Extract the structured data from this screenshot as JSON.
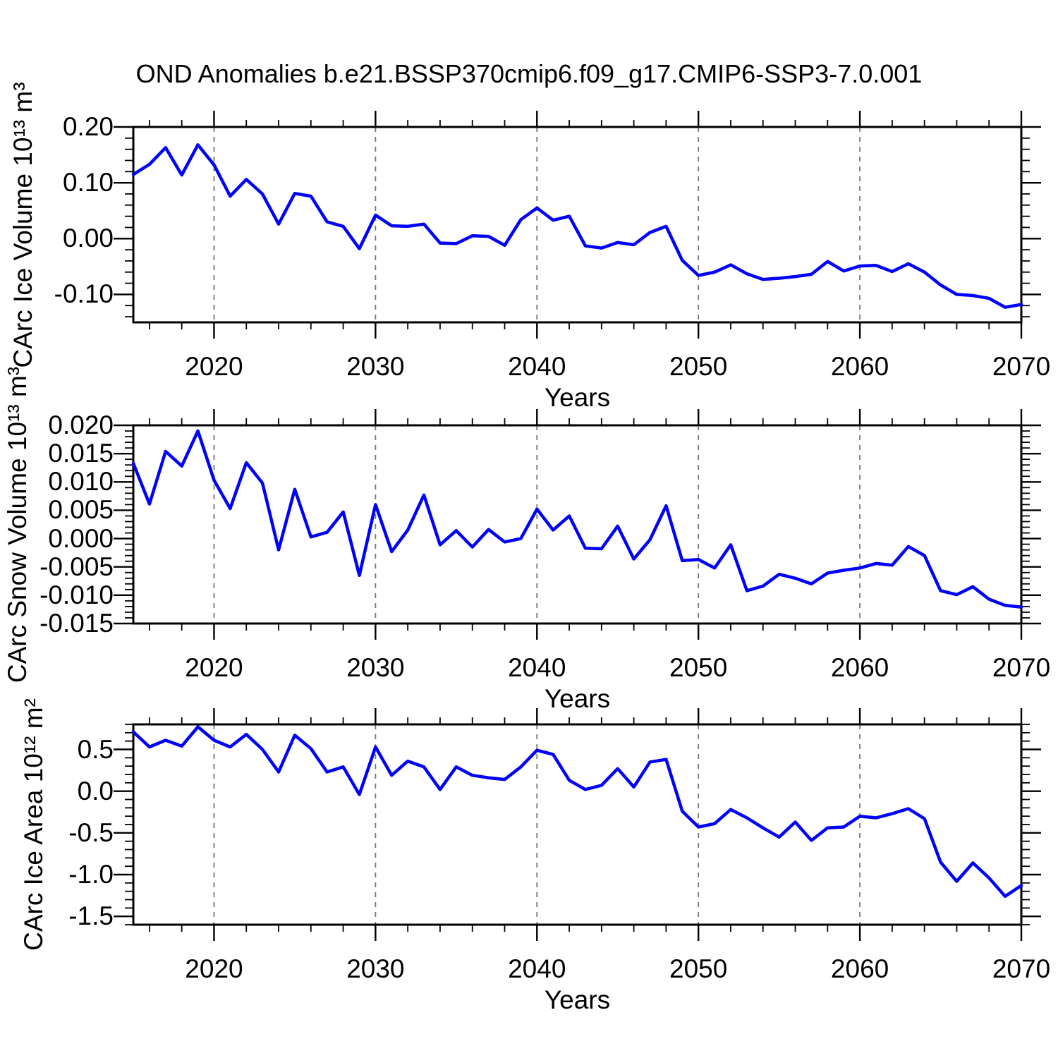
{
  "title": "OND Anomalies b.e21.BSSP370cmip6.f09_g17.CMIP6-SSP3-7.0.001",
  "line_color": "#0000ff",
  "grid_color": "#777777",
  "chart_data": {
    "type": "line",
    "x_label": "Years",
    "xlim": [
      2015,
      2070
    ],
    "x_major_ticks": [
      2020,
      2030,
      2040,
      2050,
      2060,
      2070
    ],
    "x_tick_labels": [
      "2020",
      "2030",
      "2040",
      "2050",
      "2060",
      "2070"
    ],
    "x_minor_step": 2,
    "grid_x": [
      2020,
      2030,
      2040,
      2050,
      2060
    ],
    "grid_style": "dashed",
    "line_color": "#0000ff",
    "x": [
      2015,
      2016,
      2017,
      2018,
      2019,
      2020,
      2021,
      2022,
      2023,
      2024,
      2025,
      2026,
      2027,
      2028,
      2029,
      2030,
      2031,
      2032,
      2033,
      2034,
      2035,
      2036,
      2037,
      2038,
      2039,
      2040,
      2041,
      2042,
      2043,
      2044,
      2045,
      2046,
      2047,
      2048,
      2049,
      2050,
      2051,
      2052,
      2053,
      2054,
      2055,
      2056,
      2057,
      2058,
      2059,
      2060,
      2061,
      2062,
      2063,
      2064,
      2065,
      2066,
      2067,
      2068,
      2069,
      2070
    ],
    "panels": [
      {
        "name": "carc-ice-volume",
        "ylabel": "CArc Ice Volume 10¹³ m³",
        "ylim": [
          -0.15,
          0.2
        ],
        "y_major_ticks": [
          0.2,
          0.1,
          0.0,
          -0.1
        ],
        "y_tick_labels": [
          "0.20",
          "0.10",
          "0.00",
          "-0.10"
        ],
        "y_minor_step": 0.02,
        "values": [
          0.115,
          0.133,
          0.163,
          0.114,
          0.168,
          0.132,
          0.076,
          0.106,
          0.08,
          0.026,
          0.081,
          0.076,
          0.03,
          0.022,
          -0.018,
          0.042,
          0.023,
          0.022,
          0.026,
          -0.008,
          -0.009,
          0.005,
          0.004,
          -0.012,
          0.034,
          0.055,
          0.033,
          0.04,
          -0.013,
          -0.017,
          -0.007,
          -0.011,
          0.011,
          0.022,
          -0.039,
          -0.066,
          -0.06,
          -0.047,
          -0.063,
          -0.073,
          -0.071,
          -0.068,
          -0.064,
          -0.041,
          -0.058,
          -0.049,
          -0.048,
          -0.059,
          -0.045,
          -0.06,
          -0.083,
          -0.1,
          -0.102,
          -0.107,
          -0.123,
          -0.118
        ]
      },
      {
        "name": "carc-snow-volume",
        "ylabel": "CArc Snow Volume 10¹³ m³",
        "ylim": [
          -0.015,
          0.02
        ],
        "y_major_ticks": [
          0.02,
          0.015,
          0.01,
          0.005,
          0.0,
          -0.005,
          -0.01,
          -0.015
        ],
        "y_tick_labels": [
          "0.020",
          "0.015",
          "0.010",
          "0.005",
          "0.000",
          "-0.005",
          "-0.010",
          "-0.015"
        ],
        "y_minor_step": 0.001,
        "values": [
          0.0133,
          0.0061,
          0.0154,
          0.0128,
          0.019,
          0.0103,
          0.0053,
          0.0134,
          0.0098,
          -0.002,
          0.0087,
          0.0003,
          0.0011,
          0.0047,
          -0.0065,
          0.006,
          -0.0023,
          0.0015,
          0.0077,
          -0.0011,
          0.0014,
          -0.0015,
          0.0016,
          -0.0006,
          0.0,
          0.0052,
          0.0015,
          0.004,
          -0.0017,
          -0.0018,
          0.0022,
          -0.0036,
          -0.0002,
          0.0058,
          -0.0039,
          -0.0037,
          -0.0052,
          -0.0011,
          -0.0092,
          -0.0084,
          -0.0063,
          -0.007,
          -0.008,
          -0.0061,
          -0.0056,
          -0.0052,
          -0.0044,
          -0.0047,
          -0.0014,
          -0.003,
          -0.0092,
          -0.0099,
          -0.0085,
          -0.0107,
          -0.0118,
          -0.0121
        ]
      },
      {
        "name": "carc-ice-area",
        "ylabel": "CArc Ice Area 10¹² m²",
        "ylim": [
          -1.6,
          0.8
        ],
        "y_major_ticks": [
          0.5,
          0.0,
          -0.5,
          -1.0,
          -1.5
        ],
        "y_tick_labels": [
          "0.5",
          "0.0",
          "-0.5",
          "-1.0",
          "-1.5"
        ],
        "y_minor_step": 0.1,
        "values": [
          0.71,
          0.53,
          0.61,
          0.54,
          0.77,
          0.61,
          0.53,
          0.68,
          0.5,
          0.23,
          0.67,
          0.51,
          0.23,
          0.29,
          -0.04,
          0.53,
          0.19,
          0.36,
          0.29,
          0.02,
          0.29,
          0.19,
          0.16,
          0.14,
          0.29,
          0.49,
          0.44,
          0.13,
          0.02,
          0.07,
          0.27,
          0.05,
          0.35,
          0.38,
          -0.24,
          -0.43,
          -0.39,
          -0.22,
          -0.32,
          -0.44,
          -0.55,
          -0.37,
          -0.59,
          -0.44,
          -0.43,
          -0.3,
          -0.32,
          -0.27,
          -0.21,
          -0.33,
          -0.85,
          -1.08,
          -0.86,
          -1.04,
          -1.26,
          -1.13
        ]
      }
    ]
  }
}
